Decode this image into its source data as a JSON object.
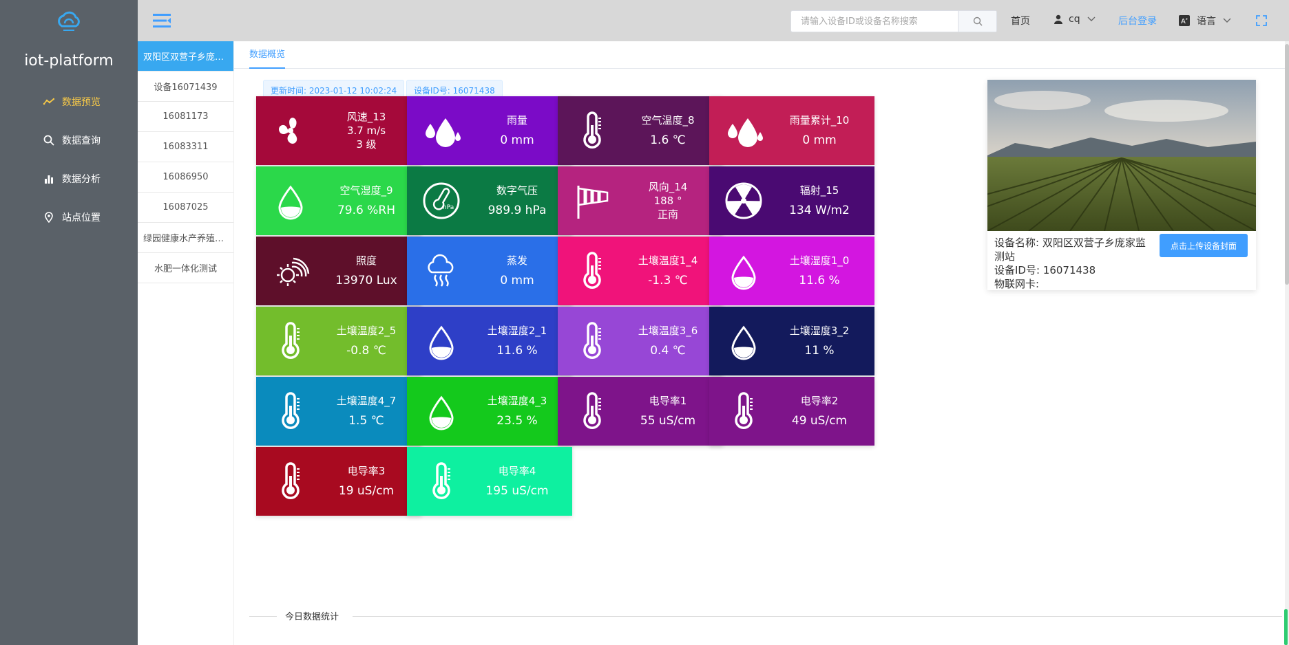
{
  "app": {
    "brand": "iot-platform"
  },
  "nav": [
    {
      "label": "数据预览",
      "icon": "trend-icon",
      "active": true
    },
    {
      "label": "数据查询",
      "icon": "search-icon",
      "active": false
    },
    {
      "label": "数据分析",
      "icon": "bar-chart-icon",
      "active": false
    },
    {
      "label": "站点位置",
      "icon": "location-icon",
      "active": false
    }
  ],
  "header": {
    "search_placeholder": "请输入设备ID或设备名称搜索",
    "home": "首页",
    "user": "cq",
    "admin_login": "后台登录",
    "language": "语言"
  },
  "devices": [
    "双阳区双营子乡庞家监测站",
    "设备16071439",
    "16081173",
    "16083311",
    "16086950",
    "16087025",
    "绿园健康水产养殖监测",
    "水肥一体化测试"
  ],
  "tab": "数据概览",
  "update_time": "更新时间: 2023-01-12 10:02:24",
  "device_id_tag": "设备ID号: 16071438",
  "cards": [
    {
      "name": "风速_13",
      "value": "3.7 m/s",
      "extra": "3 级",
      "color": "#a5093a",
      "icon": "fan-icon"
    },
    {
      "name": "雨量",
      "value": "0 mm",
      "color": "#7b0bc7",
      "icon": "rain-drops-icon"
    },
    {
      "name": "空气温度_8",
      "value": "1.6 ℃",
      "color": "#5c1559",
      "icon": "thermometer-icon"
    },
    {
      "name": "雨量累计_10",
      "value": "0 mm",
      "color": "#c21e56",
      "icon": "rain-drops-icon"
    },
    {
      "name": "空气湿度_9",
      "value": "79.6 %RH",
      "color": "#2bd84a",
      "icon": "humidity-drop-icon"
    },
    {
      "name": "数字气压",
      "value": "989.9 hPa",
      "color": "#0b7a44",
      "icon": "barometer-icon"
    },
    {
      "name": "风向_14",
      "value": "188 °",
      "extra": "正南",
      "color": "#b5237f",
      "icon": "windsock-icon"
    },
    {
      "name": "辐射_15",
      "value": "134 W/m2",
      "color": "#4a0a72",
      "icon": "radiation-icon"
    },
    {
      "name": "照度",
      "value": "13970 Lux",
      "color": "#5e0f2a",
      "icon": "sun-icon"
    },
    {
      "name": "蒸发",
      "value": "0 mm",
      "color": "#2a6fe8",
      "icon": "evaporation-icon"
    },
    {
      "name": "土壤温度1_4",
      "value": "-1.3 ℃",
      "color": "#f0137a",
      "icon": "thermometer-icon"
    },
    {
      "name": "土壤湿度1_0",
      "value": "11.6 %",
      "color": "#d316e0",
      "icon": "humidity-drop-icon"
    },
    {
      "name": "土壤温度2_5",
      "value": "-0.8 ℃",
      "color": "#73bd2c",
      "icon": "thermometer-icon"
    },
    {
      "name": "土壤湿度2_1",
      "value": "11.6 %",
      "color": "#2e3fc7",
      "icon": "humidity-drop-icon"
    },
    {
      "name": "土壤温度3_6",
      "value": "0.4 ℃",
      "color": "#9747d6",
      "icon": "thermometer-icon"
    },
    {
      "name": "土壤湿度3_2",
      "value": "11 %",
      "color": "#131a5c",
      "icon": "humidity-drop-icon"
    },
    {
      "name": "土壤温度4_7",
      "value": "1.5 ℃",
      "color": "#0a8bbd",
      "icon": "thermometer-icon"
    },
    {
      "name": "土壤湿度4_3",
      "value": "23.5 %",
      "color": "#14c91c",
      "icon": "humidity-drop-icon"
    },
    {
      "name": "电导率1",
      "value": "55 uS/cm",
      "color": "#7e148a",
      "icon": "thermometer-icon"
    },
    {
      "name": "电导率2",
      "value": "49 uS/cm",
      "color": "#7e148a",
      "icon": "thermometer-icon"
    },
    {
      "name": "电导率3",
      "value": "19 uS/cm",
      "color": "#a80a20",
      "icon": "thermometer-icon"
    },
    {
      "name": "电导率4",
      "value": "195 uS/cm",
      "color": "#0ef0a0",
      "icon": "thermometer-icon"
    }
  ],
  "device_info": {
    "name_line1": "设备名称: 双阳区双营子乡庞家监",
    "name_line2": "测站",
    "id_line": "设备ID号: 16071438",
    "sim_line": "物联网卡:",
    "upload_button": "点击上传设备封面"
  },
  "section_title": "今日数据统计"
}
